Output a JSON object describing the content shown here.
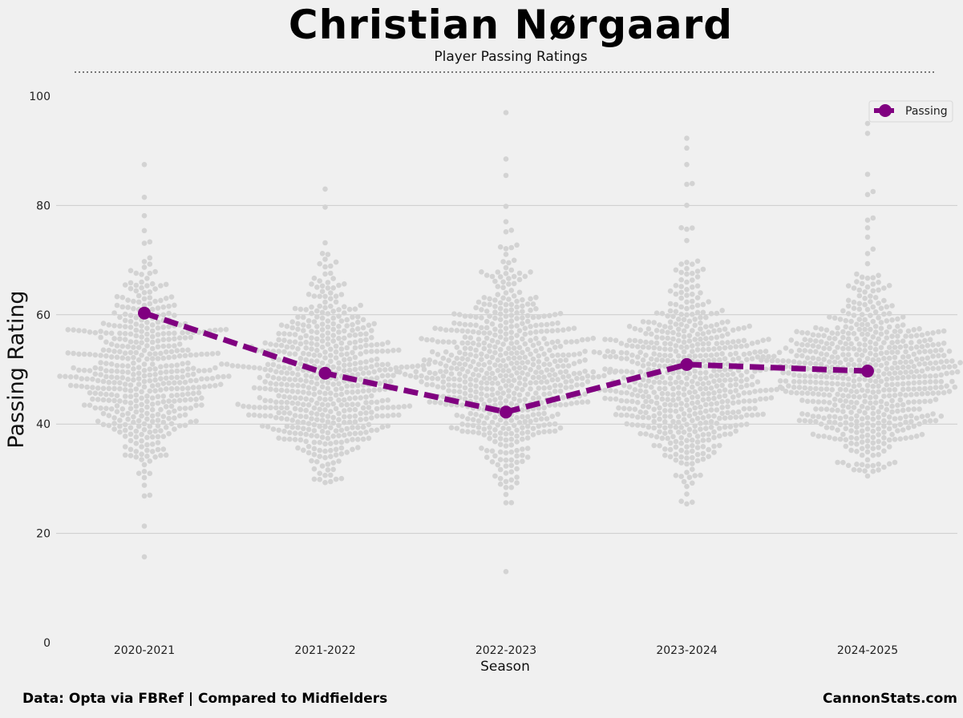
{
  "title": "Christian Nørgaard",
  "subtitle": "Player Passing Ratings",
  "footer": {
    "source": "Data: Opta via FBRef | Compared to Midfielders",
    "brand": "CannonStats.com"
  },
  "colors": {
    "background": "#f0f0f0",
    "player_line": "#800080",
    "swarm_points": "#d3d3d3",
    "grid": "#cbcbcb"
  },
  "chart_data": {
    "type": "line",
    "title": "Christian Nørgaard",
    "subtitle": "Player Passing Ratings",
    "xlabel": "Season",
    "ylabel": "Passing Rating",
    "categories": [
      "2020-2021",
      "2021-2022",
      "2022-2023",
      "2023-2024",
      "2024-2025"
    ],
    "ylim": [
      0,
      100
    ],
    "yticks": [
      0,
      20,
      40,
      60,
      80,
      100
    ],
    "grid": true,
    "legend": {
      "position": "top-right",
      "entries": [
        "Passing"
      ]
    },
    "series": [
      {
        "name": "Passing",
        "style": "dashed-with-markers",
        "values": [
          60.3,
          49.3,
          42.2,
          50.9,
          49.7
        ]
      }
    ],
    "distribution": {
      "description": "Swarm of comparison midfielders per season",
      "counts": [
        480,
        560,
        620,
        600,
        620
      ],
      "ranges": [
        {
          "min": 15.7,
          "max": 87.5,
          "center": 46,
          "outliers": [
            15.7,
            27.0,
            81.5,
            87.5
          ]
        },
        {
          "min": 29.3,
          "max": 83.0,
          "center": 45,
          "outliers": [
            29.3,
            79.7,
            83.0
          ]
        },
        {
          "min": 13.0,
          "max": 97.0,
          "center": 47,
          "outliers": [
            13.0,
            25.6,
            85.5,
            88.5,
            97.0
          ]
        },
        {
          "min": 25.4,
          "max": 92.3,
          "center": 45,
          "outliers": [
            25.4,
            25.7,
            84.0,
            87.5,
            90.5,
            92.3
          ]
        },
        {
          "min": 30.5,
          "max": 95.0,
          "center": 46,
          "outliers": [
            30.5,
            82.0,
            85.7,
            93.2,
            95.0
          ]
        }
      ]
    }
  }
}
